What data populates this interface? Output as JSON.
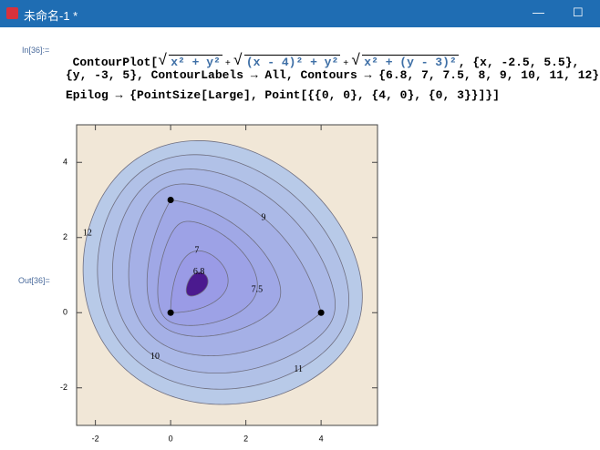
{
  "window": {
    "title": "未命名-1 *"
  },
  "input": {
    "label": "In[36]:=",
    "line1": {
      "head": "ContourPlot[",
      "radicals": [
        "x² + y²",
        "(x - 4)² + y²",
        "x² + (y - 3)²"
      ],
      "joiner": "+",
      "tail": ", {x, -2.5, 5.5},"
    },
    "line2": "{y, -3, 5}, ContourLabels → All, Contours → {6.8, 7, 7.5, 8, 9, 10, 11, 12},",
    "line3": "Epilog → {PointSize[Large], Point[{{0, 0}, {4, 0}, {0, 3}}]}]"
  },
  "output": {
    "label": "Out[36]="
  },
  "chart_data": {
    "type": "contour",
    "xlim": [
      -2.5,
      5.5
    ],
    "ylim": [
      -3,
      5
    ],
    "xticks": [
      -2,
      0,
      2,
      4
    ],
    "yticks": [
      -2,
      0,
      2,
      4
    ],
    "contours": [
      6.8,
      7,
      7.5,
      8,
      9,
      10,
      11,
      12
    ],
    "region_colors": [
      "#4b1a8f",
      "#9a9be6",
      "#9da2e6",
      "#a0a8e6",
      "#a5b0e6",
      "#abb9e7",
      "#b1c1e7",
      "#b8cae8"
    ],
    "background": "#f1e7d7",
    "line_color": "#6f6f80",
    "points": {
      "x": [
        0,
        4,
        0
      ],
      "y": [
        0,
        0,
        3
      ]
    },
    "point_color": "#000000"
  }
}
